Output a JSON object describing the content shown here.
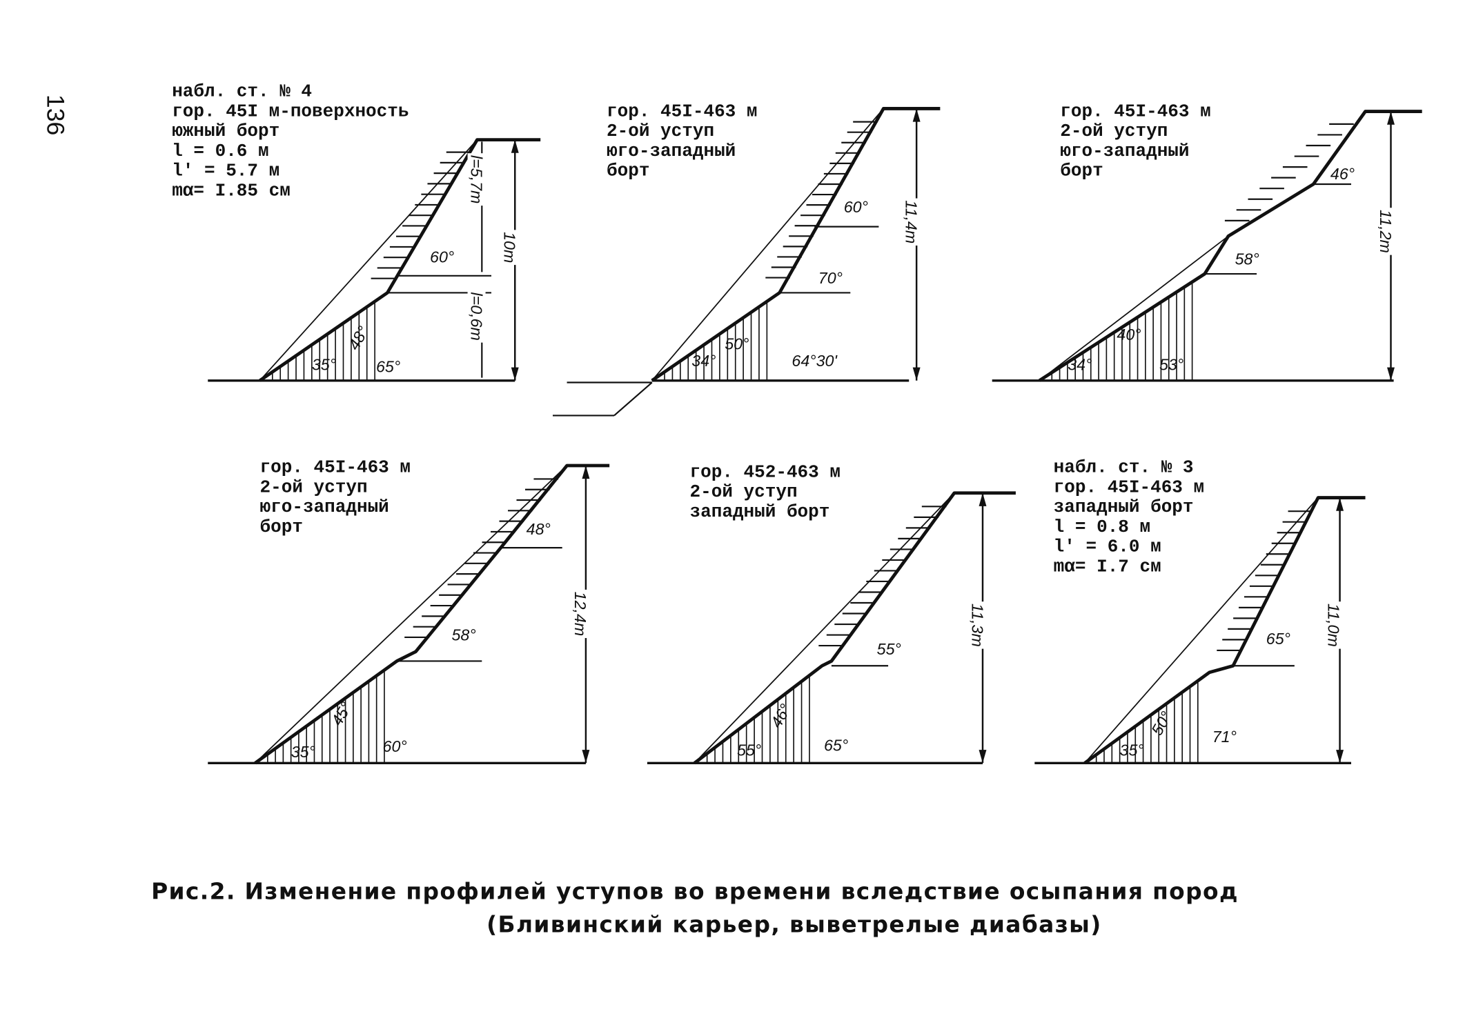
{
  "page_number": "136",
  "panels": [
    {
      "header": [
        "набл. ст. № 4",
        "гор. 45I м-поверхность",
        "южный борт",
        "l = 0.6 м",
        "l' = 5.7 м",
        "mα= I.85 см"
      ],
      "labels": [
        "60°",
        "48°",
        "35°",
        "65°",
        "l=5,7m",
        "l=0,6m",
        "10m"
      ]
    },
    {
      "header": [
        "гор. 45I-463 м",
        "2-ой уступ",
        "юго-западный",
        "борт"
      ],
      "labels": [
        "60°",
        "70°",
        "34°",
        "50°",
        "64°30'",
        "11,4m"
      ]
    },
    {
      "header": [
        "гор. 45I-463 м",
        "2-ой уступ",
        "юго-западный",
        "борт"
      ],
      "labels": [
        "46°",
        "58°",
        "40°",
        "34°",
        "53°",
        "11,2m"
      ]
    },
    {
      "header": [
        "гор. 45I-463 м",
        "2-ой уступ",
        "юго-западный",
        "борт"
      ],
      "labels": [
        "48°",
        "58°",
        "35°",
        "45°",
        "60°",
        "12,4m"
      ]
    },
    {
      "header": [
        "гор. 452-463 м",
        "2-ой уступ",
        "западный борт"
      ],
      "labels": [
        "55°",
        "55°",
        "46°",
        "65°",
        "11,3m"
      ]
    },
    {
      "header": [
        "набл. ст. № 3",
        "гор. 45I-463 м",
        "западный борт",
        "l = 0.8 м",
        "l' = 6.0 м",
        "mα= I.7 см"
      ],
      "labels": [
        "65°",
        "35°",
        "50°",
        "71°",
        "11,0m"
      ]
    }
  ],
  "caption": [
    "Рис.2. Изменение профилей уступов во времени вследствие осыпания пород",
    "(Бливинский карьер, выветрелые диабазы)"
  ]
}
